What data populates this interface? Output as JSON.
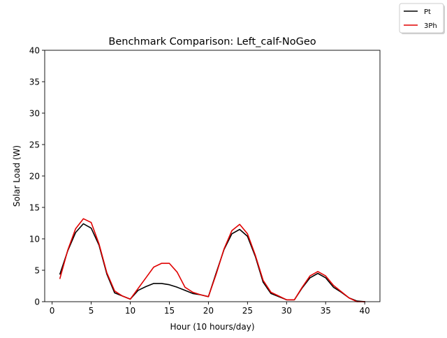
{
  "chart_data": {
    "type": "line",
    "title": "Benchmark Comparison: Left_calf-NoGeo",
    "xlabel": "Hour (10 hours/day)",
    "ylabel": "Solar Load (W)",
    "xlim": [
      -0.95,
      41.95
    ],
    "ylim": [
      0,
      40
    ],
    "xticks": [
      0,
      5,
      10,
      15,
      20,
      25,
      30,
      35,
      40
    ],
    "yticks": [
      0,
      5,
      10,
      15,
      20,
      25,
      30,
      35,
      40
    ],
    "grid": false,
    "legend_position": "top-right, outside axes",
    "x": [
      1,
      2,
      3,
      4,
      5,
      6,
      7,
      8,
      9,
      10,
      11,
      12,
      13,
      14,
      15,
      16,
      17,
      18,
      19,
      20,
      21,
      22,
      23,
      24,
      25,
      26,
      27,
      28,
      29,
      30,
      31,
      32,
      33,
      34,
      35,
      36,
      37,
      38,
      39,
      40
    ],
    "series": [
      {
        "name": "Pt",
        "color": "#000000",
        "values": [
          4.4,
          8.1,
          11.0,
          12.4,
          11.7,
          9.0,
          4.4,
          1.4,
          0.9,
          0.4,
          1.8,
          2.4,
          2.9,
          2.9,
          2.7,
          2.3,
          1.8,
          1.3,
          1.1,
          0.8,
          4.6,
          8.3,
          10.8,
          11.5,
          10.4,
          7.2,
          3.1,
          1.3,
          0.8,
          0.3,
          0.3,
          2.2,
          3.8,
          4.5,
          3.8,
          2.3,
          1.5,
          0.6,
          0.1,
          0.0
        ]
      },
      {
        "name": "3Ph",
        "color": "#e00000",
        "values": [
          3.7,
          8.2,
          11.6,
          13.2,
          12.6,
          9.2,
          4.6,
          1.7,
          0.9,
          0.4,
          2.1,
          3.8,
          5.5,
          6.1,
          6.1,
          4.7,
          2.3,
          1.5,
          1.1,
          0.8,
          4.4,
          8.4,
          11.3,
          12.3,
          10.8,
          7.4,
          3.4,
          1.5,
          0.9,
          0.3,
          0.3,
          2.3,
          4.1,
          4.8,
          4.1,
          2.6,
          1.6,
          0.6,
          0.0,
          0.0
        ]
      }
    ]
  }
}
